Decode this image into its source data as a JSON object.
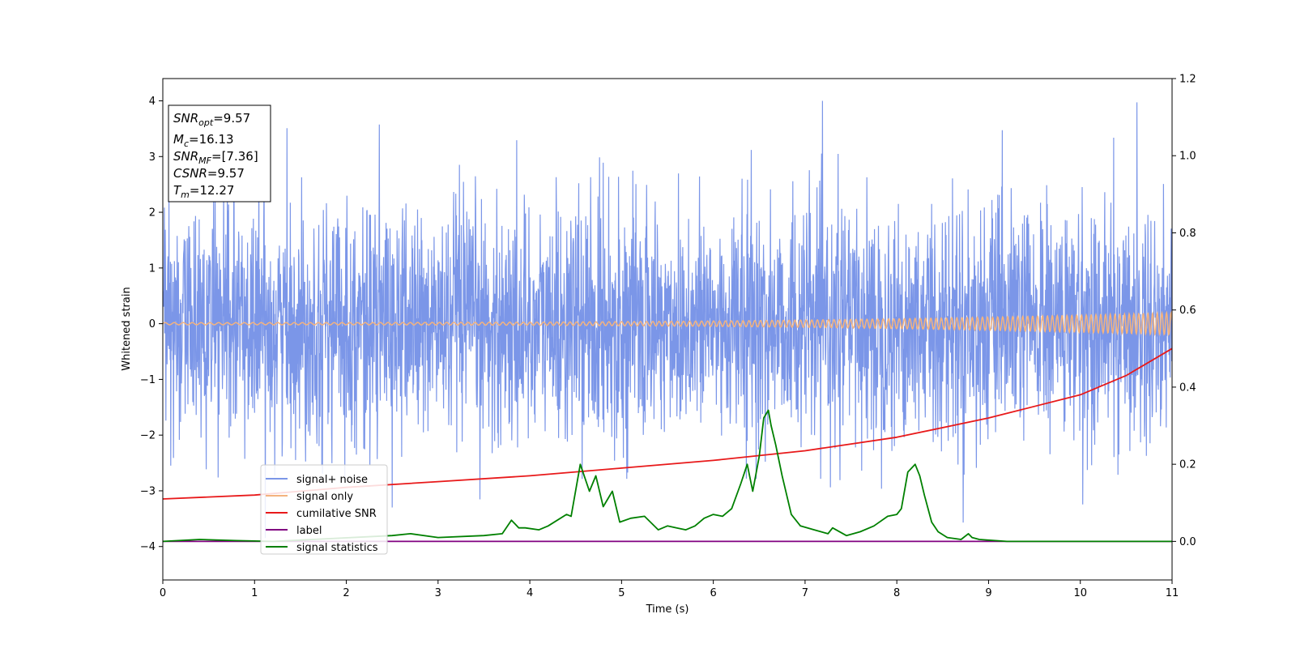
{
  "chart_data": {
    "type": "line",
    "title": "",
    "xlabel": "Time (s)",
    "ylabel": "Whitened strain",
    "xlim": [
      0,
      11
    ],
    "ylim": [
      -4.6,
      4.4
    ],
    "y2lim": [
      -0.1,
      1.2
    ],
    "x_ticks": [
      "0",
      "1",
      "2",
      "3",
      "4",
      "5",
      "6",
      "7",
      "8",
      "9",
      "10",
      "11"
    ],
    "y_ticks": [
      "4",
      "3",
      "2",
      "1",
      "0",
      "−1",
      "−2",
      "−3",
      "−4"
    ],
    "y2_ticks": [
      "1.2",
      "1.0",
      "0.8",
      "0.6",
      "0.4",
      "0.2",
      "0.0"
    ],
    "grid": false,
    "legend_position": "lower-left",
    "annotation": [
      {
        "base": "SNR",
        "sub": "opt",
        "rest": "=9.57"
      },
      {
        "base": "M",
        "sub": "c",
        "rest": "=16.13"
      },
      {
        "base": "SNR",
        "sub": "MF",
        "rest": "=[7.36]"
      },
      {
        "base": "CSNR",
        "sub": "",
        "rest": "=9.57"
      },
      {
        "base": "T",
        "sub": "m",
        "rest": "=12.27"
      }
    ],
    "series": [
      {
        "name": "signal+ noise",
        "color": "#7b96e8",
        "axis": "left",
        "kind": "gaussian noise, sd ~1.1, extremes ~±4"
      },
      {
        "name": "signal only",
        "color": "#f4b37e",
        "axis": "left",
        "kind": "chirp, amplitude rising from ~0.02 to ~0.2"
      },
      {
        "name": "cumilative SNR",
        "color": "#e8191a",
        "axis": "right",
        "x": [
          0,
          1,
          2,
          3,
          4,
          5,
          6,
          7,
          8,
          9,
          10,
          10.5,
          11
        ],
        "values": [
          0.11,
          0.12,
          0.14,
          0.155,
          0.17,
          0.19,
          0.21,
          0.235,
          0.27,
          0.32,
          0.38,
          0.43,
          0.5
        ]
      },
      {
        "name": "label",
        "color": "#800080",
        "axis": "right",
        "x": [
          0,
          11
        ],
        "values": [
          0.0,
          0.0
        ]
      },
      {
        "name": "signal statistics",
        "color": "#008000",
        "axis": "right",
        "x": [
          0,
          0.4,
          0.8,
          1.2,
          2.5,
          2.7,
          3.0,
          3.5,
          3.7,
          3.8,
          3.88,
          3.95,
          4.1,
          4.2,
          4.4,
          4.45,
          4.55,
          4.65,
          4.72,
          4.8,
          4.9,
          4.98,
          5.1,
          5.25,
          5.4,
          5.5,
          5.6,
          5.7,
          5.8,
          5.9,
          6.0,
          6.1,
          6.2,
          6.3,
          6.37,
          6.43,
          6.5,
          6.55,
          6.6,
          6.63,
          6.68,
          6.75,
          6.85,
          6.95,
          7.1,
          7.25,
          7.3,
          7.45,
          7.6,
          7.75,
          7.9,
          8.0,
          8.05,
          8.12,
          8.2,
          8.25,
          8.3,
          8.38,
          8.45,
          8.55,
          8.7,
          8.78,
          8.82,
          8.9,
          9.2,
          11
        ],
        "values": [
          0.0,
          0.005,
          0.002,
          0.0,
          0.015,
          0.02,
          0.01,
          0.015,
          0.02,
          0.055,
          0.035,
          0.035,
          0.03,
          0.04,
          0.07,
          0.065,
          0.2,
          0.13,
          0.17,
          0.09,
          0.13,
          0.05,
          0.06,
          0.065,
          0.03,
          0.04,
          0.035,
          0.03,
          0.04,
          0.06,
          0.07,
          0.065,
          0.085,
          0.15,
          0.2,
          0.13,
          0.22,
          0.32,
          0.34,
          0.3,
          0.25,
          0.17,
          0.07,
          0.04,
          0.03,
          0.02,
          0.035,
          0.015,
          0.025,
          0.04,
          0.065,
          0.07,
          0.085,
          0.18,
          0.2,
          0.17,
          0.12,
          0.05,
          0.025,
          0.01,
          0.005,
          0.02,
          0.01,
          0.005,
          0.0,
          0.0
        ]
      }
    ]
  }
}
